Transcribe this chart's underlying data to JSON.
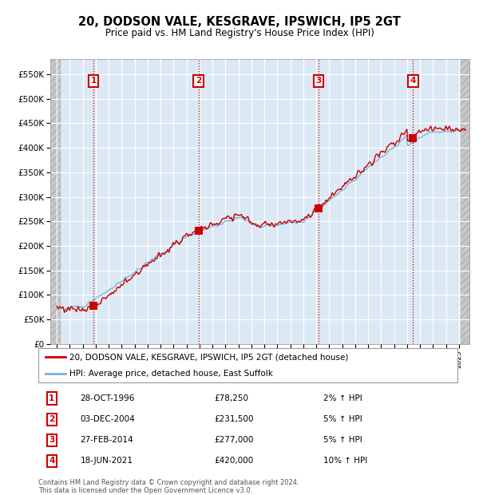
{
  "title": "20, DODSON VALE, KESGRAVE, IPSWICH, IP5 2GT",
  "subtitle": "Price paid vs. HM Land Registry's House Price Index (HPI)",
  "x_start_year": 1994,
  "x_end_year": 2025,
  "y_min": 0,
  "y_max": 580000,
  "y_ticks": [
    0,
    50000,
    100000,
    150000,
    200000,
    250000,
    300000,
    350000,
    400000,
    450000,
    500000,
    550000
  ],
  "sales": [
    {
      "date_num": 1996.83,
      "price": 78250,
      "label": "1"
    },
    {
      "date_num": 2004.92,
      "price": 231500,
      "label": "2"
    },
    {
      "date_num": 2014.16,
      "price": 277000,
      "label": "3"
    },
    {
      "date_num": 2021.46,
      "price": 420000,
      "label": "4"
    }
  ],
  "sale_color": "#cc0000",
  "hpi_color": "#7ab0d4",
  "legend_label_sale": "20, DODSON VALE, KESGRAVE, IPSWICH, IP5 2GT (detached house)",
  "legend_label_hpi": "HPI: Average price, detached house, East Suffolk",
  "table": [
    {
      "num": "1",
      "date": "28-OCT-1996",
      "price": "£78,250",
      "hpi": "2% ↑ HPI"
    },
    {
      "num": "2",
      "date": "03-DEC-2004",
      "price": "£231,500",
      "hpi": "5% ↑ HPI"
    },
    {
      "num": "3",
      "date": "27-FEB-2014",
      "price": "£277,000",
      "hpi": "5% ↑ HPI"
    },
    {
      "num": "4",
      "date": "18-JUN-2021",
      "price": "£420,000",
      "hpi": "10% ↑ HPI"
    }
  ],
  "footnote": "Contains HM Land Registry data © Crown copyright and database right 2024.\nThis data is licensed under the Open Government Licence v3.0.",
  "background_plot": "#dce9f5",
  "grid_color": "#ffffff"
}
